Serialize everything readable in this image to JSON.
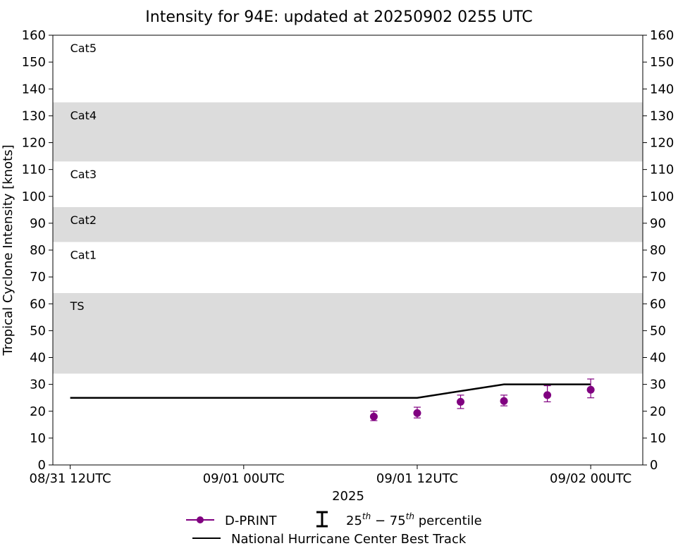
{
  "chart_data": {
    "type": "line",
    "title": "Intensity for 94E: updated at 20250902 0255 UTC",
    "xlabel": "2025",
    "ylabel": "Tropical Cyclone Intensity [knots]",
    "ylim": [
      0,
      160
    ],
    "yticks": [
      0,
      10,
      20,
      30,
      40,
      50,
      60,
      70,
      80,
      90,
      100,
      110,
      120,
      130,
      140,
      150,
      160
    ],
    "xlim_hours": [
      -0.6,
      19.8
    ],
    "xticks": [
      {
        "hours": 0,
        "label": "08/31 12UTC"
      },
      {
        "hours": 6,
        "label": "09/01 00UTC"
      },
      {
        "hours": 12,
        "label": "09/01 12UTC"
      },
      {
        "hours": 18,
        "label": "09/02 00UTC"
      }
    ],
    "bands": [
      {
        "label": "TS",
        "y0": 34,
        "y1": 64,
        "shaded": true
      },
      {
        "label": "Cat1",
        "y0": 64,
        "y1": 83,
        "shaded": false
      },
      {
        "label": "Cat2",
        "y0": 83,
        "y1": 96,
        "shaded": true
      },
      {
        "label": "Cat3",
        "y0": 96,
        "y1": 113,
        "shaded": false
      },
      {
        "label": "Cat4",
        "y0": 113,
        "y1": 135,
        "shaded": true
      },
      {
        "label": "Cat5",
        "y0": 135,
        "y1": 160,
        "shaded": false
      }
    ],
    "series": [
      {
        "name": "D-PRINT",
        "color": "#800080",
        "points": [
          {
            "hours": 10.5,
            "y": 18,
            "q25": 16.5,
            "q75": 20
          },
          {
            "hours": 12,
            "y": 19.3,
            "q25": 17.5,
            "q75": 21.5
          },
          {
            "hours": 13.5,
            "y": 23.5,
            "q25": 21,
            "q75": 26
          },
          {
            "hours": 15,
            "y": 23.8,
            "q25": 22,
            "q75": 26
          },
          {
            "hours": 16.5,
            "y": 26,
            "q25": 23.5,
            "q75": 29.5
          },
          {
            "hours": 18,
            "y": 28,
            "q25": 25,
            "q75": 32
          }
        ]
      },
      {
        "name": "National Hurricane Center Best Track",
        "color": "#000000",
        "points": [
          {
            "hours": 0,
            "y": 25
          },
          {
            "hours": 6,
            "y": 25
          },
          {
            "hours": 12,
            "y": 25
          },
          {
            "hours": 15,
            "y": 30
          },
          {
            "hours": 18,
            "y": 30
          }
        ]
      }
    ],
    "legend": {
      "placement": "bottom-center",
      "dprint_label": "D-PRINT",
      "percentile_label_pre": "25",
      "percentile_sup1": "th",
      "percentile_label_mid": " − 75",
      "percentile_sup2": "th",
      "percentile_label_post": " percentile",
      "besttrack_label": "National Hurricane Center Best Track"
    }
  }
}
